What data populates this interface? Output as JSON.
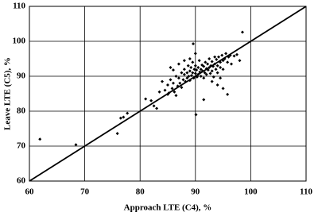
{
  "chart_data": {
    "type": "scatter",
    "x_label": "Approach LTE (C4), %",
    "y_label": "Leave LTE (C5), %",
    "xlim": [
      60,
      110
    ],
    "ylim": [
      60,
      110
    ],
    "xticks": [
      60,
      70,
      80,
      90,
      100,
      110
    ],
    "yticks": [
      60,
      70,
      80,
      90,
      100,
      110
    ],
    "grid": true,
    "color": "#000000",
    "series": [
      {
        "color": "#000000",
        "x": [
          61.9,
          68.4,
          75.9,
          76.5,
          77.0,
          77.7,
          81.0,
          82.0,
          82.5,
          83.0,
          90.1,
          98.5,
          89.6,
          91.5,
          95.8,
          84.5,
          85.0,
          85.2,
          85.5,
          85.8,
          86.0,
          86.2,
          86.5,
          86.8,
          87.0,
          87.2,
          87.5,
          87.5,
          87.8,
          88.0,
          88.0,
          88.2,
          88.5,
          88.5,
          88.7,
          88.8,
          89.0,
          89.0,
          89.2,
          89.3,
          89.5,
          89.5,
          89.7,
          89.8,
          90.0,
          90.0,
          90.2,
          90.3,
          90.5,
          90.5,
          90.7,
          90.8,
          91.0,
          91.0,
          91.2,
          91.3,
          91.5,
          91.5,
          91.7,
          91.8,
          92.0,
          92.0,
          92.2,
          92.3,
          92.5,
          92.5,
          92.7,
          92.8,
          93.0,
          93.0,
          93.2,
          93.3,
          93.5,
          93.5,
          93.7,
          93.8,
          94.0,
          94.0,
          94.2,
          94.5,
          94.5,
          94.8,
          95.0,
          95.0,
          95.3,
          95.5,
          95.8,
          96.0,
          96.3,
          96.5,
          97.0,
          94.0,
          95.0,
          85.5,
          86.0,
          87.0,
          88.0,
          89.0,
          90.0,
          86.5,
          84.0,
          85.0,
          83.5,
          94.5,
          93.0,
          97.5,
          98.0
        ],
        "values": [
          72.0,
          70.4,
          73.6,
          78.0,
          78.3,
          79.4,
          83.5,
          83.0,
          81.5,
          80.8,
          79.0,
          102.6,
          99.3,
          83.3,
          84.8,
          86.0,
          87.5,
          85.2,
          89.0,
          86.5,
          88.0,
          85.5,
          90.0,
          87.2,
          89.5,
          88.0,
          91.0,
          86.8,
          89.0,
          90.5,
          92.0,
          88.5,
          91.0,
          89.5,
          93.0,
          90.0,
          91.5,
          88.8,
          92.5,
          90.2,
          94.0,
          91.0,
          89.5,
          92.0,
          90.8,
          93.0,
          91.8,
          89.8,
          92.5,
          90.5,
          94.5,
          91.2,
          92.0,
          90.0,
          93.2,
          91.5,
          92.8,
          89.5,
          91.0,
          94.0,
          92.2,
          90.5,
          93.5,
          91.8,
          92.5,
          95.0,
          90.8,
          93.0,
          91.5,
          94.2,
          92.8,
          89.8,
          93.5,
          95.5,
          92.0,
          94.8,
          93.0,
          91.0,
          95.5,
          94.0,
          92.5,
          96.0,
          94.5,
          92.0,
          95.0,
          96.5,
          94.0,
          95.5,
          96.0,
          93.5,
          95.8,
          87.5,
          86.5,
          92.5,
          91.8,
          93.5,
          94.5,
          95.0,
          96.5,
          84.5,
          88.5,
          84.8,
          85.5,
          89.5,
          88.5,
          96.2,
          94.5
        ]
      }
    ]
  }
}
